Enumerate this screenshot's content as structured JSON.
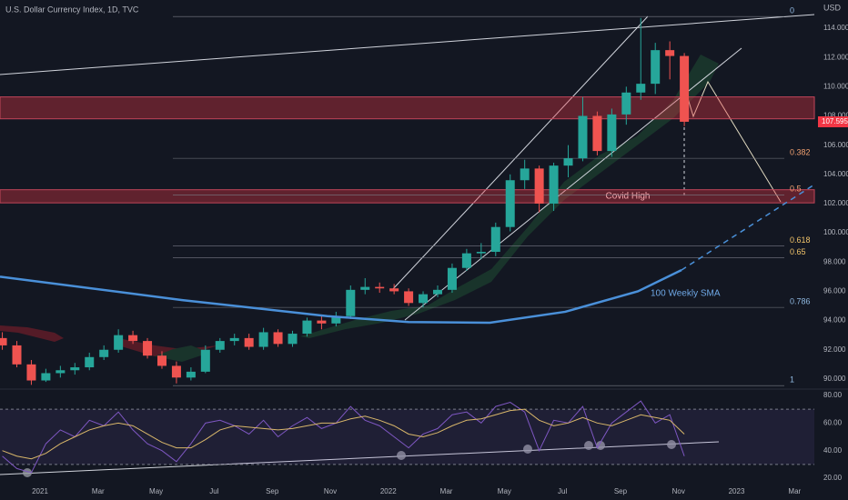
{
  "chart_data": [
    {
      "type": "candlestick",
      "title": "U.S. Dollar Currency Index, 1D, TVC",
      "currency": "USD",
      "x": [
        -1.3,
        -0.8,
        -0.3,
        0.2,
        0.7,
        1.2,
        1.7,
        2.2,
        2.7,
        3.2,
        3.7,
        4.2,
        4.7,
        5.2,
        5.7,
        6.2,
        6.7,
        7.2,
        7.7,
        8.2,
        8.7,
        9.2,
        9.7,
        10.2,
        10.7,
        11.2,
        11.7,
        12.2,
        12.7,
        13.2,
        13.7,
        14.2,
        14.7,
        15.2,
        15.7,
        16.2,
        16.7,
        17.2,
        17.7,
        18.2,
        18.7,
        19.2,
        19.7,
        20.2,
        20.7,
        21.2,
        21.7,
        22.2
      ],
      "open": [
        92.8,
        92.3,
        91.0,
        89.9,
        90.4,
        90.6,
        90.8,
        91.5,
        92.0,
        93.0,
        92.6,
        91.6,
        90.9,
        90.1,
        90.5,
        92.0,
        92.6,
        92.8,
        92.2,
        93.2,
        92.4,
        93.1,
        94.0,
        93.8,
        94.3,
        96.1,
        96.3,
        96.2,
        96.0,
        95.2,
        95.8,
        96.1,
        97.6,
        98.6,
        98.7,
        100.4,
        103.6,
        104.4,
        102.0,
        104.6,
        105.1,
        108.0,
        105.6,
        108.1,
        109.6,
        110.2,
        112.5,
        112.1
      ],
      "high": [
        93.2,
        92.6,
        91.3,
        90.7,
        90.9,
        91.1,
        91.8,
        92.3,
        93.4,
        93.3,
        92.8,
        91.9,
        91.2,
        90.8,
        92.3,
        92.8,
        93.1,
        93.1,
        93.5,
        93.4,
        93.3,
        94.2,
        94.4,
        94.6,
        96.4,
        96.9,
        96.6,
        96.5,
        96.2,
        96.0,
        96.4,
        97.9,
        98.9,
        99.3,
        100.7,
        104.0,
        105.0,
        104.6,
        104.8,
        106.0,
        109.3,
        108.3,
        108.5,
        110.0,
        114.7,
        113.0,
        113.1,
        112.3
      ],
      "low": [
        92.0,
        90.8,
        89.6,
        89.8,
        90.1,
        90.3,
        90.6,
        91.3,
        91.8,
        92.4,
        91.4,
        90.7,
        89.7,
        89.9,
        90.4,
        91.8,
        92.3,
        92.0,
        92.0,
        92.2,
        92.2,
        92.9,
        93.4,
        93.6,
        94.1,
        95.8,
        95.9,
        95.8,
        95.0,
        94.9,
        95.6,
        95.9,
        97.4,
        98.2,
        98.4,
        100.1,
        103.0,
        101.4,
        101.5,
        103.8,
        104.9,
        105.3,
        105.2,
        107.4,
        109.1,
        109.5,
        110.5,
        107.3
      ],
      "close": [
        92.3,
        91.0,
        89.9,
        90.4,
        90.6,
        90.8,
        91.5,
        92.0,
        93.0,
        92.6,
        91.6,
        90.9,
        90.1,
        90.5,
        92.0,
        92.6,
        92.8,
        92.2,
        93.2,
        92.4,
        93.1,
        94.0,
        93.8,
        94.3,
        96.1,
        96.3,
        96.2,
        96.0,
        95.2,
        95.8,
        96.1,
        97.6,
        98.6,
        98.7,
        100.4,
        103.6,
        104.4,
        102.0,
        104.6,
        105.1,
        108.0,
        105.6,
        108.1,
        109.6,
        110.2,
        112.5,
        112.1,
        107.6
      ],
      "up_color": "#26a69a",
      "down_color": "#ef5350",
      "sma": {
        "name": "100 Weekly SMA",
        "color": "#4a90d9",
        "x": [
          -1.38,
          4.9,
          9.9,
          12.7,
          15.5,
          18.1,
          20.6,
          22.1,
          26.68
        ],
        "values": [
          97.0,
          95.4,
          94.3,
          93.9,
          93.85,
          94.6,
          96.0,
          97.45,
          103.3
        ],
        "dashed_from": 7
      },
      "fib_levels": [
        {
          "value": 114.8,
          "label": "0"
        },
        {
          "value": 105.1,
          "label": "0.382"
        },
        {
          "value": 102.6,
          "label": "0.5"
        },
        {
          "value": 99.1,
          "label": "0.618"
        },
        {
          "value": 98.3,
          "label": "0.65"
        },
        {
          "value": 94.9,
          "label": "0.786"
        },
        {
          "value": 89.55,
          "label": "1"
        }
      ],
      "zones": [
        {
          "label": "Covid High",
          "range": [
            102.05,
            102.95
          ]
        },
        {
          "range": [
            107.8,
            109.3
          ]
        }
      ],
      "last_price": {
        "value": 107.595,
        "label": "107.595"
      },
      "xlim": [
        -1.38,
        26.68
      ],
      "ylim": [
        89.31,
        115.93
      ],
      "yticks": [
        {
          "value": 90,
          "label": "90.000"
        },
        {
          "value": 92,
          "label": "92.000"
        },
        {
          "value": 94,
          "label": "94.000"
        },
        {
          "value": 96,
          "label": "96.000"
        },
        {
          "value": 98,
          "label": "98.000"
        },
        {
          "value": 100,
          "label": "100.000"
        },
        {
          "value": 102,
          "label": "102.000"
        },
        {
          "value": 104,
          "label": "104.000"
        },
        {
          "value": 106,
          "label": "106.000"
        },
        {
          "value": 108,
          "label": "108.000"
        },
        {
          "value": 110,
          "label": "110.000"
        },
        {
          "value": 112,
          "label": "112.000"
        },
        {
          "value": 114,
          "label": "114.000"
        }
      ]
    },
    {
      "type": "line",
      "x": [
        -1.3,
        -0.8,
        -0.3,
        0.2,
        0.7,
        1.2,
        1.7,
        2.2,
        2.7,
        3.2,
        3.7,
        4.2,
        4.7,
        5.2,
        5.7,
        6.2,
        6.7,
        7.2,
        7.7,
        8.2,
        8.7,
        9.2,
        9.7,
        10.2,
        10.7,
        11.2,
        11.7,
        12.2,
        12.7,
        13.2,
        13.7,
        14.2,
        14.7,
        15.2,
        15.7,
        16.2,
        16.7,
        17.2,
        17.7,
        18.2,
        18.7,
        19.2,
        19.7,
        20.2,
        20.7,
        21.2,
        21.7,
        22.2
      ],
      "series": [
        {
          "color": "#7e57c2",
          "values": [
            36,
            27,
            24,
            45,
            55,
            50,
            62,
            58,
            68,
            55,
            45,
            40,
            32,
            45,
            60,
            62,
            58,
            52,
            62,
            50,
            58,
            64,
            56,
            60,
            72,
            62,
            58,
            50,
            42,
            52,
            56,
            66,
            68,
            60,
            72,
            75,
            68,
            40,
            62,
            60,
            72,
            42,
            60,
            68,
            76,
            60,
            66,
            36
          ]
        },
        {
          "color": "#d9b76a",
          "values": [
            40,
            36,
            34,
            38,
            45,
            50,
            55,
            58,
            60,
            58,
            52,
            46,
            42,
            42,
            48,
            55,
            58,
            57,
            56,
            55,
            56,
            58,
            60,
            60,
            63,
            65,
            62,
            58,
            52,
            50,
            53,
            58,
            62,
            63,
            66,
            69,
            70,
            62,
            58,
            60,
            64,
            60,
            58,
            62,
            66,
            64,
            62,
            52
          ]
        }
      ],
      "bands": [
        30,
        70
      ],
      "xlim": [
        -1.38,
        26.68
      ],
      "ylim": [
        16.06,
        84.6
      ],
      "yticks": [
        {
          "value": 20,
          "label": "20.00"
        },
        {
          "value": 40,
          "label": "40.00"
        },
        {
          "value": 60,
          "label": "60.00"
        },
        {
          "value": 80,
          "label": "80.00"
        }
      ],
      "xticks": [
        {
          "value": 0,
          "label": "2021"
        },
        {
          "value": 2,
          "label": "Mar"
        },
        {
          "value": 4,
          "label": "May"
        },
        {
          "value": 6,
          "label": "Jul"
        },
        {
          "value": 8,
          "label": "Sep"
        },
        {
          "value": 10,
          "label": "Nov"
        },
        {
          "value": 12,
          "label": "2022"
        },
        {
          "value": 14,
          "label": "Mar"
        },
        {
          "value": 16,
          "label": "May"
        },
        {
          "value": 18,
          "label": "Jul"
        },
        {
          "value": 20,
          "label": "Sep"
        },
        {
          "value": 22,
          "label": "Nov"
        },
        {
          "value": 24,
          "label": "2023"
        },
        {
          "value": 26,
          "label": "Mar"
        }
      ]
    }
  ]
}
